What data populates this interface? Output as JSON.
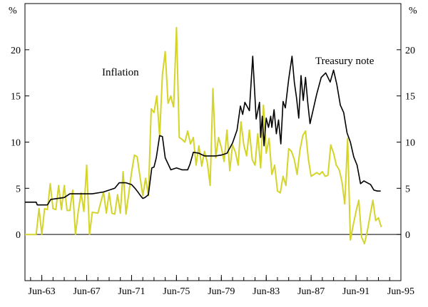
{
  "chart_data": {
    "type": "line",
    "title": "",
    "xlabel": "",
    "ylabel": "",
    "y_unit_left": "%",
    "y_unit_right": "%",
    "ylim": [
      -5,
      25
    ],
    "y_ticks": [
      0,
      5,
      10,
      15,
      20
    ],
    "y_tick_labels": [
      "0",
      "5",
      "10",
      "15",
      "20"
    ],
    "xlim": [
      1962.0,
      1995.5
    ],
    "x_ticks": [
      1963.5,
      1967.5,
      1971.5,
      1975.5,
      1979.5,
      1983.5,
      1987.5,
      1991.5,
      1995.5
    ],
    "x_tick_labels": [
      "Jun-63",
      "Jun-67",
      "Jun-71",
      "Jun-75",
      "Jun-79",
      "Jun-83",
      "Jun-87",
      "Jun-91",
      "Jun-95"
    ],
    "zero_line": true,
    "grid": false,
    "annotations": [
      {
        "text": "Inflation",
        "series": "inflation"
      },
      {
        "text": "Treasury note",
        "series": "treasury"
      }
    ],
    "colors": {
      "treasury": "#000000",
      "inflation": "#d4d42a",
      "zero_line": "#000000"
    },
    "series": [
      {
        "name": "Treasury note",
        "key": "treasury",
        "x": [
          1962.0,
          1963.0,
          1963.1,
          1964.0,
          1964.3,
          1965.5,
          1966.0,
          1968.0,
          1969.0,
          1970.0,
          1970.4,
          1971.0,
          1971.5,
          1971.8,
          1972.0,
          1972.3,
          1972.5,
          1972.7,
          1973.0,
          1973.3,
          1973.5,
          1973.7,
          1974.0,
          1974.25,
          1974.5,
          1975.0,
          1975.5,
          1976.0,
          1976.5,
          1976.7,
          1977.0,
          1977.5,
          1978.0,
          1978.5,
          1979.0,
          1979.5,
          1980.0,
          1980.5,
          1980.9,
          1981.2,
          1981.4,
          1981.6,
          1982.0,
          1982.3,
          1982.6,
          1982.9,
          1983.0,
          1983.15,
          1983.3,
          1983.5,
          1983.7,
          1983.9,
          1984.0,
          1984.2,
          1984.4,
          1984.6,
          1984.8,
          1985.0,
          1985.2,
          1985.5,
          1985.8,
          1986.0,
          1986.2,
          1986.4,
          1986.6,
          1986.8,
          1987.0,
          1987.2,
          1987.4,
          1987.7,
          1988.0,
          1988.4,
          1988.8,
          1989.2,
          1989.5,
          1989.8,
          1990.1,
          1990.4,
          1990.7,
          1991.0,
          1991.3,
          1991.6,
          1991.9,
          1992.2,
          1992.5,
          1992.8,
          1993.1,
          1993.4,
          1993.7
        ],
        "values": [
          3.5,
          3.5,
          3.2,
          3.2,
          3.8,
          4.0,
          4.4,
          4.4,
          4.6,
          5.0,
          5.6,
          5.6,
          5.4,
          5.0,
          4.7,
          4.2,
          3.9,
          4.0,
          4.3,
          7.2,
          7.3,
          8.3,
          10.7,
          10.6,
          8.3,
          7.0,
          7.2,
          7.0,
          7.0,
          7.6,
          8.9,
          8.8,
          8.5,
          8.5,
          8.5,
          8.6,
          8.8,
          9.9,
          11.3,
          13.9,
          13.0,
          14.3,
          13.4,
          19.3,
          12.5,
          14.3,
          10.5,
          12.8,
          9.6,
          12.6,
          11.6,
          12.8,
          11.6,
          13.5,
          10.9,
          12.4,
          9.8,
          14.4,
          13.7,
          16.8,
          19.3,
          16.5,
          14.8,
          12.6,
          17.2,
          14.5,
          17.0,
          14.3,
          12.0,
          13.6,
          15.2,
          17.0,
          17.5,
          16.5,
          17.8,
          16.2,
          14.0,
          13.2,
          11.0,
          10.0,
          8.4,
          7.5,
          5.5,
          5.8,
          5.6,
          5.4,
          4.8,
          4.7,
          4.7
        ]
      },
      {
        "name": "Inflation",
        "key": "inflation",
        "x": [
          1962.0,
          1962.5,
          1963.0,
          1963.25,
          1963.5,
          1963.75,
          1964.0,
          1964.25,
          1964.5,
          1964.75,
          1965.0,
          1965.25,
          1965.5,
          1965.75,
          1966.0,
          1966.25,
          1966.5,
          1966.75,
          1967.0,
          1967.25,
          1967.5,
          1967.75,
          1968.0,
          1968.5,
          1969.0,
          1969.25,
          1969.5,
          1969.75,
          1970.0,
          1970.25,
          1970.5,
          1970.75,
          1971.0,
          1971.25,
          1971.5,
          1971.75,
          1972.0,
          1972.25,
          1972.5,
          1972.75,
          1973.0,
          1973.25,
          1973.5,
          1973.75,
          1974.0,
          1974.25,
          1974.5,
          1974.75,
          1975.0,
          1975.1,
          1975.25,
          1975.5,
          1975.75,
          1976.0,
          1976.25,
          1976.5,
          1976.75,
          1977.0,
          1977.25,
          1977.5,
          1977.75,
          1978.0,
          1978.25,
          1978.5,
          1978.75,
          1979.0,
          1979.25,
          1979.5,
          1979.75,
          1980.0,
          1980.25,
          1980.5,
          1980.75,
          1981.0,
          1981.25,
          1981.5,
          1981.75,
          1982.0,
          1982.25,
          1982.5,
          1982.75,
          1983.0,
          1983.25,
          1983.5,
          1983.75,
          1984.0,
          1984.25,
          1984.5,
          1984.75,
          1985.0,
          1985.25,
          1985.5,
          1985.75,
          1986.0,
          1986.25,
          1986.5,
          1986.75,
          1987.0,
          1987.25,
          1987.5,
          1987.75,
          1988.0,
          1988.25,
          1988.5,
          1988.75,
          1989.0,
          1989.25,
          1989.5,
          1989.75,
          1990.0,
          1990.25,
          1990.5,
          1990.75,
          1991.0,
          1991.25,
          1991.5,
          1991.75,
          1992.0,
          1992.25,
          1992.5,
          1992.75,
          1993.0,
          1993.25,
          1993.5,
          1993.75
        ],
        "values": [
          0.0,
          0.0,
          0.0,
          2.8,
          0.0,
          2.8,
          2.7,
          5.5,
          2.8,
          2.7,
          5.3,
          2.7,
          5.3,
          2.6,
          2.6,
          4.8,
          0.0,
          2.5,
          4.5,
          2.5,
          7.5,
          0.0,
          2.4,
          2.3,
          4.6,
          2.3,
          4.5,
          2.3,
          2.2,
          4.3,
          2.3,
          6.8,
          2.2,
          4.4,
          6.7,
          8.6,
          8.4,
          6.3,
          4.2,
          6.1,
          4.2,
          13.6,
          13.2,
          15.0,
          10.6,
          17.3,
          19.8,
          14.2,
          15.0,
          14.4,
          13.8,
          22.4,
          10.5,
          10.3,
          10.0,
          11.2,
          9.8,
          10.5,
          7.5,
          9.6,
          7.4,
          9.0,
          7.8,
          5.3,
          15.8,
          8.3,
          10.5,
          9.4,
          7.9,
          11.3,
          6.9,
          9.7,
          8.9,
          7.5,
          12.2,
          9.7,
          8.5,
          11.3,
          8.1,
          7.5,
          10.9,
          7.2,
          14.0,
          8.8,
          10.4,
          6.5,
          7.5,
          4.7,
          4.5,
          6.3,
          5.3,
          9.3,
          9.0,
          8.1,
          6.5,
          9.1,
          10.7,
          11.2,
          8.2,
          6.3,
          6.5,
          6.7,
          6.5,
          6.8,
          6.3,
          6.4,
          9.7,
          8.8,
          7.5,
          7.0,
          5.7,
          3.3,
          10.4,
          -0.6,
          1.0,
          2.5,
          3.7,
          -0.3,
          -1.0,
          0.3,
          2.0,
          3.7,
          1.5,
          1.8,
          0.8
        ]
      }
    ]
  }
}
